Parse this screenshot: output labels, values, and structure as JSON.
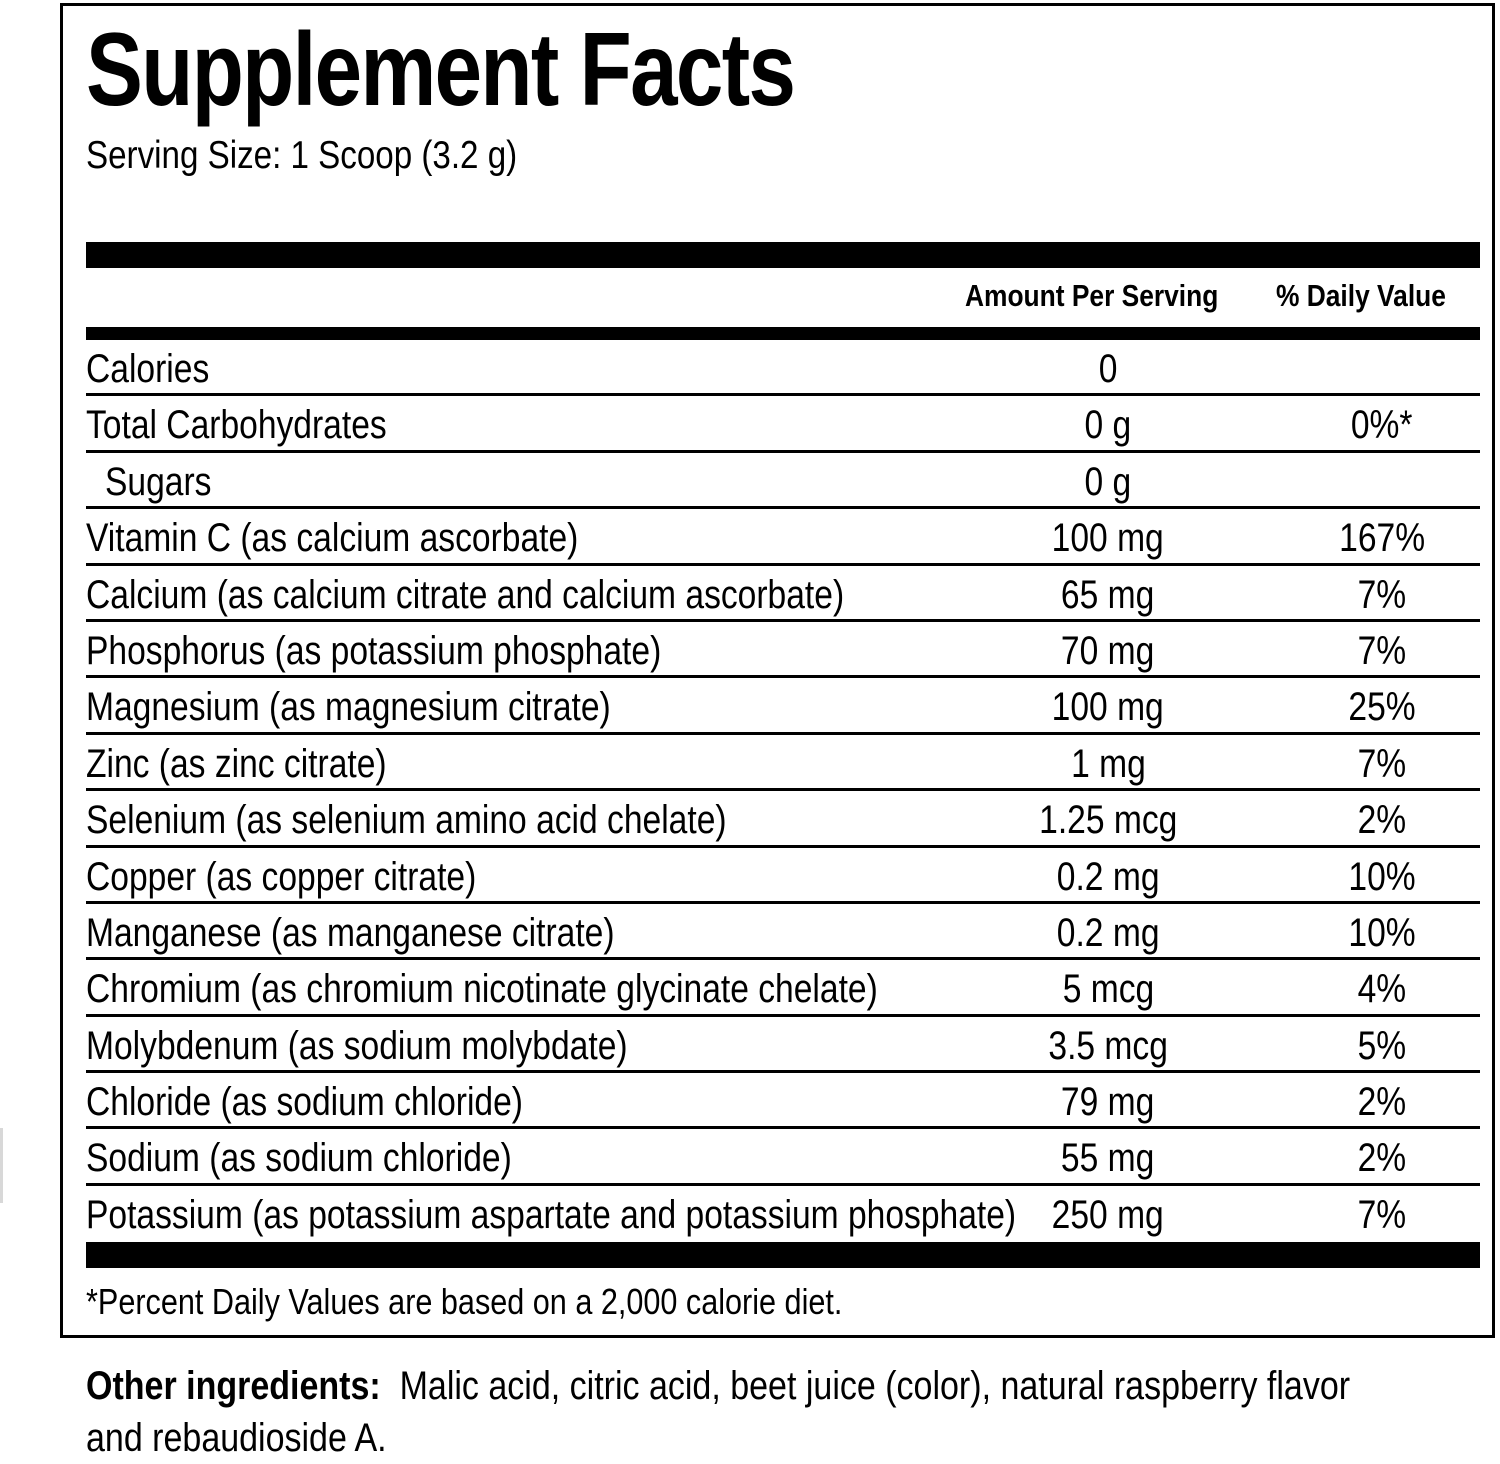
{
  "label": {
    "title": "Supplement Facts",
    "serving_size": "Serving Size: 1 Scoop (3.2 g)",
    "columns": {
      "amount": "Amount Per Serving",
      "daily_value": "% Daily Value"
    },
    "rows": [
      {
        "name": "Calories",
        "amount": "0",
        "dv": ""
      },
      {
        "name": "Total Carbohydrates",
        "amount": "0 g",
        "dv": "0%*"
      },
      {
        "name": "Sugars",
        "amount": "0 g",
        "dv": ""
      },
      {
        "name": "Vitamin C (as calcium ascorbate)",
        "amount": "100 mg",
        "dv": "167%"
      },
      {
        "name": "Calcium (as calcium citrate and calcium ascorbate)",
        "amount": "65 mg",
        "dv": "7%"
      },
      {
        "name": "Phosphorus (as potassium phosphate)",
        "amount": "70 mg",
        "dv": "7%"
      },
      {
        "name": "Magnesium (as magnesium citrate)",
        "amount": "100 mg",
        "dv": "25%"
      },
      {
        "name": "Zinc (as zinc citrate)",
        "amount": "1 mg",
        "dv": "7%"
      },
      {
        "name": "Selenium (as selenium amino acid chelate)",
        "amount": "1.25 mcg",
        "dv": "2%"
      },
      {
        "name": "Copper (as copper citrate)",
        "amount": "0.2 mg",
        "dv": "10%"
      },
      {
        "name": "Manganese (as manganese citrate)",
        "amount": "0.2 mg",
        "dv": "10%"
      },
      {
        "name": "Chromium (as chromium nicotinate glycinate chelate)",
        "amount": "5 mcg",
        "dv": "4%"
      },
      {
        "name": "Molybdenum (as sodium molybdate)",
        "amount": "3.5 mcg",
        "dv": "5%"
      },
      {
        "name": "Chloride (as sodium chloride)",
        "amount": "79 mg",
        "dv": "2%"
      },
      {
        "name": "Sodium (as sodium chloride)",
        "amount": "55 mg",
        "dv": "2%"
      },
      {
        "name": "Potassium (as potassium aspartate and potassium phosphate)",
        "amount": "250 mg",
        "dv": "7%"
      }
    ],
    "footnote": "*Percent Daily Values are based on a 2,000 calorie diet."
  },
  "other_ingredients": {
    "label": "Other ingredients:",
    "text": "Malic acid, citric acid, beet juice (color), natural raspberry flavor and rebaudioside A."
  }
}
